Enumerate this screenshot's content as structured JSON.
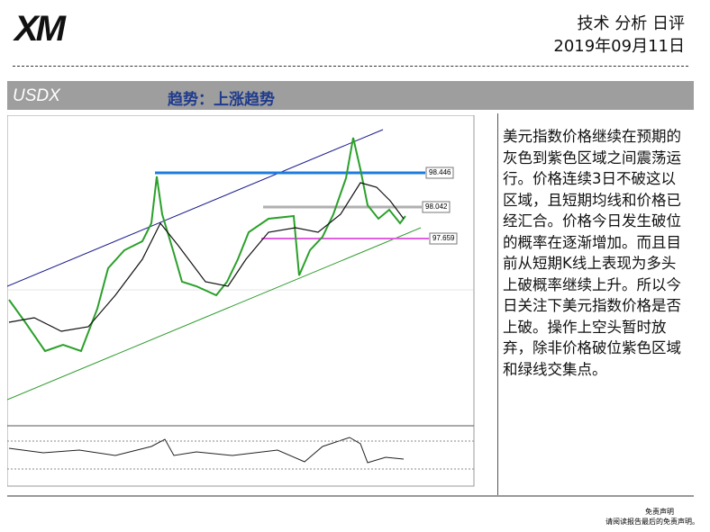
{
  "header": {
    "logo": "XM",
    "title": "技术 分析 日评",
    "date": "2019年09月11日"
  },
  "section": {
    "symbol": "USDX",
    "trend": "趋势：上涨趋势"
  },
  "chart": {
    "levels": [
      "98.446",
      "98.042",
      "97.659"
    ]
  },
  "body": {
    "text": "美元指数价格继续在预期的灰色到紫色区域之间震荡运行。价格连续3日不破这以区域，且短期均线和价格已经汇合。价格今日发生破位的概率在逐渐增加。而且目前从短期K线上表现为多头上破概率继续上升。所以今日关注下美元指数价格是否上破。操作上空头暂时放弃，除非价格破位紫色区域和绿线交集点。"
  },
  "footer": {
    "line1": "免责声明",
    "line2": "请阅读报告最后的免责声明。"
  }
}
